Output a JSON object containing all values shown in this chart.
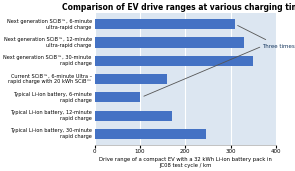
{
  "title": "Comparison of EV drive ranges at various charging times",
  "xlabel": "Drive range of a compact EV with a 32 kWh Li-ion battery pack in\nJC08 test cycle / km",
  "categories": [
    "Next generation SCiB™, 6-minute\nultra-rapid charge",
    "Next generation SCiB™, 12-minute\nultra-rapid charge",
    "Next generation SCiB™, 30-minute\nrapid charge",
    "Current SCiB™, 6-minute Ultra –\nrapid charge with 20 kWh SCiB™",
    "Typical Li-ion battery, 6-minute\nrapid charge",
    "Typical Li-ion battery, 12-minute\nrapid charge",
    "Typical Li-ion battery, 30-minute\nrapid charge"
  ],
  "values": [
    310,
    330,
    350,
    160,
    100,
    170,
    245
  ],
  "bar_color": "#4472C4",
  "xlim": [
    0,
    400
  ],
  "xticks": [
    0,
    100,
    200,
    300,
    400
  ],
  "annotation_text": "Three times",
  "plot_bg_color": "#dce6f1",
  "fig_bg_color": "#ffffff",
  "title_fontsize": 5.5,
  "label_fontsize": 3.6,
  "tick_fontsize": 4.0,
  "xlabel_fontsize": 3.8,
  "annot_fontsize": 4.0,
  "grid_color": "#ffffff",
  "bar_height": 0.55
}
